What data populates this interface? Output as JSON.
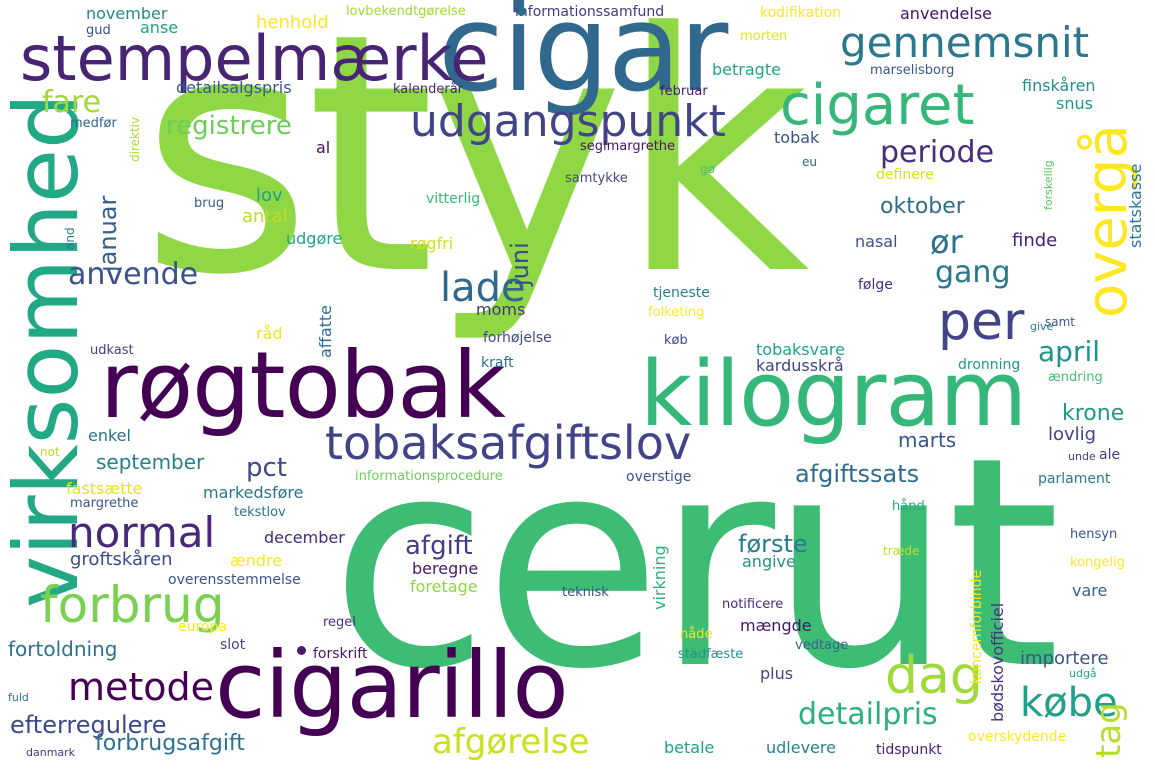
{
  "words": [
    {
      "text": "styk",
      "color": "#8fd744"
    },
    {
      "text": "cerut",
      "color": "#3dbc74"
    },
    {
      "text": "cigar",
      "color": "#31688e"
    },
    {
      "text": "kilogram",
      "color": "#35b779"
    },
    {
      "text": "røgtobak",
      "color": "#440154"
    },
    {
      "text": "cigarillo",
      "color": "#440154"
    },
    {
      "text": "virksomhed",
      "color": "#22a884"
    },
    {
      "text": "stempelmærke",
      "color": "#482475"
    },
    {
      "text": "tobaksafgiftslov",
      "color": "#414487"
    },
    {
      "text": "cigaret",
      "color": "#35b779"
    },
    {
      "text": "udgangspunkt",
      "color": "#414487"
    },
    {
      "text": "gennemsnit",
      "color": "#2a788e"
    },
    {
      "text": "forbrug",
      "color": "#7ad151"
    },
    {
      "text": "normal",
      "color": "#482878"
    },
    {
      "text": "overgå",
      "color": "#fde725"
    },
    {
      "text": "per",
      "color": "#414487"
    },
    {
      "text": "dag",
      "color": "#a0da39"
    },
    {
      "text": "metode",
      "color": "#440154"
    },
    {
      "text": "købe",
      "color": "#1fa088"
    },
    {
      "text": "afgørelse",
      "color": "#c8e020"
    },
    {
      "text": "detailpris",
      "color": "#2ab07f"
    },
    {
      "text": "lade",
      "color": "#31688e"
    },
    {
      "text": "periode",
      "color": "#472d7b"
    },
    {
      "text": "anvende",
      "color": "#3b528b"
    },
    {
      "text": "registrere",
      "color": "#6ccd5a"
    },
    {
      "text": "fare",
      "color": "#a0da39"
    },
    {
      "text": "ør",
      "color": "#2c728e"
    },
    {
      "text": "gang",
      "color": "#2a788e"
    },
    {
      "text": "april",
      "color": "#21918c"
    },
    {
      "text": "tag",
      "color": "#b5de2b"
    },
    {
      "text": "efterregulere",
      "color": "#3e4989"
    },
    {
      "text": "forbrugsafgift",
      "color": "#2c728e"
    },
    {
      "text": "afgift",
      "color": "#433e85"
    },
    {
      "text": "første",
      "color": "#287c8e"
    },
    {
      "text": "pct",
      "color": "#404688"
    },
    {
      "text": "afgiftssats",
      "color": "#2f6c8e"
    },
    {
      "text": "oktober",
      "color": "#2e6e8e"
    },
    {
      "text": "januar",
      "color": "#365d8d"
    },
    {
      "text": "juni",
      "color": "#3f4889"
    },
    {
      "text": "krone",
      "color": "#1f9a8a"
    },
    {
      "text": "september",
      "color": "#277f8e"
    },
    {
      "text": "marts",
      "color": "#39568c"
    },
    {
      "text": "lovlig",
      "color": "#404387"
    },
    {
      "text": "anvendelse",
      "color": "#471164"
    },
    {
      "text": "november",
      "color": "#23898e"
    },
    {
      "text": "henhold",
      "color": "#fde725"
    },
    {
      "text": "anse",
      "color": "#1fa287"
    },
    {
      "text": "gud",
      "color": "#3d4d8a"
    },
    {
      "text": "lovbekendtgørelse",
      "color": "#a2da37"
    },
    {
      "text": "informationssamfund",
      "color": "#453882"
    },
    {
      "text": "kodifikation",
      "color": "#fde725"
    },
    {
      "text": "morten",
      "color": "#e3e418"
    },
    {
      "text": "marselisborg",
      "color": "#38588c"
    },
    {
      "text": "finskåren",
      "color": "#20928c"
    },
    {
      "text": "snus",
      "color": "#1f988b"
    },
    {
      "text": "statskasse",
      "color": "#2b758e"
    },
    {
      "text": "betragte",
      "color": "#21a685"
    },
    {
      "text": "detailsalgspris",
      "color": "#38588c"
    },
    {
      "text": "kalenderår",
      "color": "#482576"
    },
    {
      "text": "februar",
      "color": "#481c6e"
    },
    {
      "text": "medfør",
      "color": "#32648e"
    },
    {
      "text": "direktiv",
      "color": "#a8db34"
    },
    {
      "text": "seglmargrethe",
      "color": "#481467"
    },
    {
      "text": "tobak",
      "color": "#3a538b"
    },
    {
      "text": "eu",
      "color": "#33638d"
    },
    {
      "text": "gø",
      "color": "#4ac16d"
    },
    {
      "text": "samtykke",
      "color": "#3f4788"
    },
    {
      "text": "al",
      "color": "#471063"
    },
    {
      "text": "lov",
      "color": "#1fa187"
    },
    {
      "text": "definere",
      "color": "#d5e21a"
    },
    {
      "text": "brug",
      "color": "#34618d"
    },
    {
      "text": "vitterlig",
      "color": "#38b977"
    },
    {
      "text": "antal",
      "color": "#bade28"
    },
    {
      "text": "udgøre",
      "color": "#21a685"
    },
    {
      "text": "røgfri",
      "color": "#d2e21b"
    },
    {
      "text": "nasal",
      "color": "#3b518b"
    },
    {
      "text": "finde",
      "color": "#482172"
    },
    {
      "text": "forskellig",
      "color": "#58c765"
    },
    {
      "text": "and",
      "color": "#2a768e"
    },
    {
      "text": "følge",
      "color": "#46307e"
    },
    {
      "text": "tjeneste",
      "color": "#277e8e"
    },
    {
      "text": "folketing",
      "color": "#fde725"
    },
    {
      "text": "samt",
      "color": "#39568c"
    },
    {
      "text": "give",
      "color": "#2a778e"
    },
    {
      "text": "moms",
      "color": "#453781"
    },
    {
      "text": "affatte",
      "color": "#2f6b8e"
    },
    {
      "text": "råd",
      "color": "#f1e51d"
    },
    {
      "text": "forhøjelse",
      "color": "#3e4a89"
    },
    {
      "text": "udkast",
      "color": "#433d84"
    },
    {
      "text": "køb",
      "color": "#3f4788"
    },
    {
      "text": "kraft",
      "color": "#2c718e"
    },
    {
      "text": "tobaksvare",
      "color": "#20a386"
    },
    {
      "text": "kardusskrå",
      "color": "#414487"
    },
    {
      "text": "dronning",
      "color": "#1e9c89"
    },
    {
      "text": "ændring",
      "color": "#42be71"
    },
    {
      "text": "enkel",
      "color": "#2d718e"
    },
    {
      "text": "not",
      "color": "#b2dd2d"
    },
    {
      "text": "unde",
      "color": "#424186"
    },
    {
      "text": "ale",
      "color": "#443b84"
    },
    {
      "text": "fastsætte",
      "color": "#e7e419"
    },
    {
      "text": "informationsprocedure",
      "color": "#6ece58"
    },
    {
      "text": "overstige",
      "color": "#3b528b"
    },
    {
      "text": "markedsføre",
      "color": "#2b758e"
    },
    {
      "text": "parlament",
      "color": "#2a788e"
    },
    {
      "text": "margrethe",
      "color": "#3b528b"
    },
    {
      "text": "tekstlov",
      "color": "#2c728e"
    },
    {
      "text": "virkning",
      "color": "#2db27d"
    },
    {
      "text": "bødskovofficiel",
      "color": "#463480"
    },
    {
      "text": "koncernforbinde",
      "color": "#f6e620"
    },
    {
      "text": "hånd",
      "color": "#25ac82"
    },
    {
      "text": "groftskåren",
      "color": "#3e4c8a"
    },
    {
      "text": "december",
      "color": "#482979"
    },
    {
      "text": "ændre",
      "color": "#fbe723"
    },
    {
      "text": "beregne",
      "color": "#481a6c"
    },
    {
      "text": "angive",
      "color": "#20928c"
    },
    {
      "text": "hensyn",
      "color": "#3a538b"
    },
    {
      "text": "overensstemmelse",
      "color": "#3a548c"
    },
    {
      "text": "foretage",
      "color": "#8bd646"
    },
    {
      "text": "træde",
      "color": "#c2df23"
    },
    {
      "text": "kongelig",
      "color": "#fde725"
    },
    {
      "text": "teknisk",
      "color": "#3b528b"
    },
    {
      "text": "europa",
      "color": "#fde725"
    },
    {
      "text": "slot",
      "color": "#3f4788"
    },
    {
      "text": "regel",
      "color": "#472f7d"
    },
    {
      "text": "notificere",
      "color": "#472c7a"
    },
    {
      "text": "vare",
      "color": "#32648e"
    },
    {
      "text": "nåde",
      "color": "#f4e61e"
    },
    {
      "text": "mængde",
      "color": "#481467"
    },
    {
      "text": "vedtage",
      "color": "#32648e"
    },
    {
      "text": "fortoldning",
      "color": "#2c728e"
    },
    {
      "text": "forskrift",
      "color": "#481769"
    },
    {
      "text": "stadfæste",
      "color": "#1f958b"
    },
    {
      "text": "importere",
      "color": "#3a548c"
    },
    {
      "text": "plus",
      "color": "#404588"
    },
    {
      "text": "udgå",
      "color": "#22a884"
    },
    {
      "text": "fuld",
      "color": "#2b748e"
    },
    {
      "text": "betale",
      "color": "#1fa188"
    },
    {
      "text": "udlevere",
      "color": "#26818e"
    },
    {
      "text": "tidspunkt",
      "color": "#481f70"
    },
    {
      "text": "overskydende",
      "color": "#fde725"
    },
    {
      "text": "danmark",
      "color": "#443983"
    }
  ]
}
